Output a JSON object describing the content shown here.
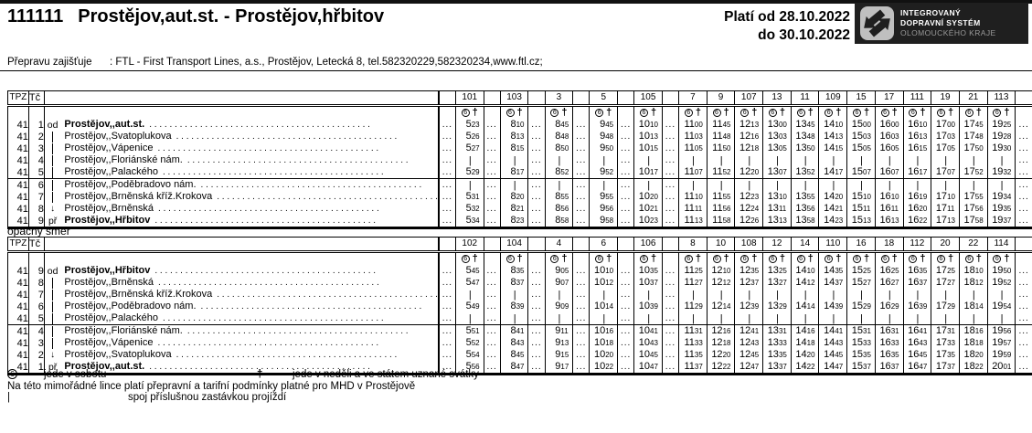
{
  "header": {
    "route_number": "111111",
    "title": "Prostějov,aut.st. - Prostějov,hřbitov",
    "valid_from": "Platí od 28.10.2022",
    "valid_to": "do 30.10.2022"
  },
  "logo": {
    "line1": "INTEGROVANÝ",
    "line2": "DOPRAVNÍ SYSTÉM",
    "line3": "OLOMOUCKÉHO KRAJE"
  },
  "operator": {
    "label": "Přepravu zajišťuje",
    "value": ": FTL - First Transport Lines, a.s., Prostějov, Letecká 8, tel.582320229,582320234,www.ftl.cz;"
  },
  "table_headers": {
    "tpz": "TPZ",
    "tc": "Tč"
  },
  "symbols": {
    "saturday_circle": "6",
    "dagger": "†",
    "pass": "|",
    "dots": "...",
    "arrow": "↓"
  },
  "tables": [
    {
      "label": "",
      "separator_after": 5,
      "stops": [
        {
          "tpz": "41",
          "tc": "1",
          "dir": "od",
          "name": "Prostějov,,aut.st.",
          "bold": true
        },
        {
          "tpz": "41",
          "tc": "2",
          "dir": "|",
          "name": "Prostějov,,Svatoplukova",
          "bold": false
        },
        {
          "tpz": "41",
          "tc": "3",
          "dir": "|",
          "name": "Prostějov,,Vápenice",
          "bold": false
        },
        {
          "tpz": "41",
          "tc": "4",
          "dir": "|",
          "name": "Prostějov,,Floriánské nám.",
          "bold": false
        },
        {
          "tpz": "41",
          "tc": "5",
          "dir": "|",
          "name": "Prostějov,,Palackého",
          "bold": false
        },
        {
          "tpz": "41",
          "tc": "6",
          "dir": "|",
          "name": "Prostějov,,Poděbradovo nám.",
          "bold": false
        },
        {
          "tpz": "41",
          "tc": "7",
          "dir": "|",
          "name": "Prostějov,,Brněnská kříž.Krokova",
          "bold": false
        },
        {
          "tpz": "41",
          "tc": "8",
          "dir": "arrow",
          "name": "Prostějov,,Brněnská",
          "bold": false
        },
        {
          "tpz": "41",
          "tc": "9",
          "dir": "př",
          "name": "Prostějov,,Hřbitov",
          "bold": true
        }
      ],
      "trips": [
        {
          "n": "101",
          "d": true,
          "times": [
            "5 23",
            "5 26",
            "5 27",
            "|",
            "5 29",
            "|",
            "5 31",
            "5 32",
            "5 34"
          ]
        },
        {
          "n": "103",
          "d": true,
          "times": [
            "8 10",
            "8 13",
            "8 15",
            "|",
            "8 17",
            "|",
            "8 20",
            "8 21",
            "8 23"
          ]
        },
        {
          "n": "3",
          "d": true,
          "times": [
            "8 45",
            "8 48",
            "8 50",
            "|",
            "8 52",
            "|",
            "8 55",
            "8 56",
            "8 58"
          ]
        },
        {
          "n": "5",
          "d": true,
          "times": [
            "9 45",
            "9 48",
            "9 50",
            "|",
            "9 52",
            "|",
            "9 55",
            "9 56",
            "9 58"
          ]
        },
        {
          "n": "105",
          "d": true,
          "times": [
            "10 10",
            "10 13",
            "10 15",
            "|",
            "10 17",
            "|",
            "10 20",
            "10 21",
            "10 23"
          ]
        },
        {
          "n": "7",
          "d": true,
          "times": [
            "11 00",
            "11 03",
            "11 05",
            "|",
            "11 07",
            "|",
            "11 10",
            "11 11",
            "11 13"
          ]
        },
        {
          "n": "9",
          "d": false,
          "times": [
            "11 45",
            "11 48",
            "11 50",
            "|",
            "11 52",
            "|",
            "11 55",
            "11 56",
            "11 58"
          ]
        },
        {
          "n": "107",
          "d": false,
          "times": [
            "12 13",
            "12 16",
            "12 18",
            "|",
            "12 20",
            "|",
            "12 23",
            "12 24",
            "12 26"
          ]
        },
        {
          "n": "13",
          "d": false,
          "times": [
            "13 00",
            "13 03",
            "13 05",
            "|",
            "13 07",
            "|",
            "13 10",
            "13 11",
            "13 13"
          ]
        },
        {
          "n": "11",
          "d": false,
          "times": [
            "13 45",
            "13 48",
            "13 50",
            "|",
            "13 52",
            "|",
            "13 55",
            "13 56",
            "13 58"
          ]
        },
        {
          "n": "109",
          "d": false,
          "times": [
            "14 10",
            "14 13",
            "14 15",
            "|",
            "14 17",
            "|",
            "14 20",
            "14 21",
            "14 23"
          ]
        },
        {
          "n": "15",
          "d": false,
          "times": [
            "15 00",
            "15 03",
            "15 05",
            "|",
            "15 07",
            "|",
            "15 10",
            "15 11",
            "15 13"
          ]
        },
        {
          "n": "17",
          "d": false,
          "times": [
            "16 00",
            "16 03",
            "16 05",
            "|",
            "16 07",
            "|",
            "16 10",
            "16 11",
            "16 13"
          ]
        },
        {
          "n": "111",
          "d": false,
          "times": [
            "16 10",
            "16 13",
            "16 15",
            "|",
            "16 17",
            "|",
            "16 19",
            "16 20",
            "16 22"
          ]
        },
        {
          "n": "19",
          "d": false,
          "times": [
            "17 00",
            "17 03",
            "17 05",
            "|",
            "17 07",
            "|",
            "17 10",
            "17 11",
            "17 13"
          ]
        },
        {
          "n": "21",
          "d": false,
          "times": [
            "17 45",
            "17 48",
            "17 50",
            "|",
            "17 52",
            "|",
            "17 55",
            "17 56",
            "17 58"
          ]
        },
        {
          "n": "113",
          "d": false,
          "times": [
            "19 25",
            "19 28",
            "19 30",
            "|",
            "19 32",
            "|",
            "19 34",
            "19 35",
            "19 37"
          ]
        }
      ]
    },
    {
      "label": "opačný směr",
      "separator_after": 5,
      "stops": [
        {
          "tpz": "41",
          "tc": "9",
          "dir": "od",
          "name": "Prostějov,,Hřbitov",
          "bold": true
        },
        {
          "tpz": "41",
          "tc": "8",
          "dir": "|",
          "name": "Prostějov,,Brněnská",
          "bold": false
        },
        {
          "tpz": "41",
          "tc": "7",
          "dir": "|",
          "name": "Prostějov,,Brněnská kříž.Krokova",
          "bold": false
        },
        {
          "tpz": "41",
          "tc": "6",
          "dir": "|",
          "name": "Prostějov,,Poděbradovo nám.",
          "bold": false
        },
        {
          "tpz": "41",
          "tc": "5",
          "dir": "|",
          "name": "Prostějov,,Palackého",
          "bold": false
        },
        {
          "tpz": "41",
          "tc": "4",
          "dir": "|",
          "name": "Prostějov,,Floriánské nám.",
          "bold": false
        },
        {
          "tpz": "41",
          "tc": "3",
          "dir": "|",
          "name": "Prostějov,,Vápenice",
          "bold": false
        },
        {
          "tpz": "41",
          "tc": "2",
          "dir": "arrow",
          "name": "Prostějov,,Svatoplukova",
          "bold": false
        },
        {
          "tpz": "41",
          "tc": "1",
          "dir": "př",
          "name": "Prostějov,,aut.st.",
          "bold": true
        }
      ],
      "trips": [
        {
          "n": "102",
          "d": true,
          "times": [
            "5 45",
            "5 47",
            "|",
            "5 49",
            "|",
            "5 51",
            "5 52",
            "5 54",
            "5 56"
          ]
        },
        {
          "n": "104",
          "d": true,
          "times": [
            "8 35",
            "8 37",
            "|",
            "8 39",
            "|",
            "8 41",
            "8 43",
            "8 45",
            "8 47"
          ]
        },
        {
          "n": "4",
          "d": true,
          "times": [
            "9 05",
            "9 07",
            "|",
            "9 09",
            "|",
            "9 11",
            "9 13",
            "9 15",
            "9 17"
          ]
        },
        {
          "n": "6",
          "d": true,
          "times": [
            "10 10",
            "10 12",
            "|",
            "10 14",
            "|",
            "10 16",
            "10 18",
            "10 20",
            "10 22"
          ]
        },
        {
          "n": "106",
          "d": true,
          "times": [
            "10 35",
            "10 37",
            "|",
            "10 39",
            "|",
            "10 41",
            "10 43",
            "10 45",
            "10 47"
          ]
        },
        {
          "n": "8",
          "d": true,
          "times": [
            "11 25",
            "11 27",
            "|",
            "11 29",
            "|",
            "11 31",
            "11 33",
            "11 35",
            "11 37"
          ]
        },
        {
          "n": "10",
          "d": false,
          "times": [
            "12 10",
            "12 12",
            "|",
            "12 14",
            "|",
            "12 16",
            "12 18",
            "12 20",
            "12 22"
          ]
        },
        {
          "n": "108",
          "d": false,
          "times": [
            "12 35",
            "12 37",
            "|",
            "12 39",
            "|",
            "12 41",
            "12 43",
            "12 45",
            "12 47"
          ]
        },
        {
          "n": "12",
          "d": false,
          "times": [
            "13 25",
            "13 27",
            "|",
            "13 29",
            "|",
            "13 31",
            "13 33",
            "13 35",
            "13 37"
          ]
        },
        {
          "n": "14",
          "d": false,
          "times": [
            "14 10",
            "14 12",
            "|",
            "14 14",
            "|",
            "14 16",
            "14 18",
            "14 20",
            "14 22"
          ]
        },
        {
          "n": "110",
          "d": false,
          "times": [
            "14 35",
            "14 37",
            "|",
            "14 39",
            "|",
            "14 41",
            "14 43",
            "14 45",
            "14 47"
          ]
        },
        {
          "n": "16",
          "d": false,
          "times": [
            "15 25",
            "15 27",
            "|",
            "15 29",
            "|",
            "15 31",
            "15 33",
            "15 35",
            "15 37"
          ]
        },
        {
          "n": "18",
          "d": false,
          "times": [
            "16 25",
            "16 27",
            "|",
            "16 29",
            "|",
            "16 31",
            "16 33",
            "16 35",
            "16 37"
          ]
        },
        {
          "n": "112",
          "d": false,
          "times": [
            "16 35",
            "16 37",
            "|",
            "16 39",
            "|",
            "16 41",
            "16 43",
            "16 45",
            "16 47"
          ]
        },
        {
          "n": "20",
          "d": false,
          "times": [
            "17 25",
            "17 27",
            "|",
            "17 29",
            "|",
            "17 31",
            "17 33",
            "17 35",
            "17 37"
          ]
        },
        {
          "n": "22",
          "d": false,
          "times": [
            "18 10",
            "18 12",
            "|",
            "18 14",
            "|",
            "18 16",
            "18 18",
            "18 20",
            "18 22"
          ]
        },
        {
          "n": "114",
          "d": false,
          "times": [
            "19 50",
            "19 52",
            "|",
            "19 54",
            "|",
            "19 56",
            "19 57",
            "19 59",
            "20 01"
          ]
        }
      ]
    }
  ],
  "legend": {
    "saturday_text": "jede v sobotu",
    "sunday_text": "jede v neděli a ve státem uznané svátky",
    "note": "Na této mimořádné lince platí přepravní a tarifní podmínky platné pro MHD v Prostějově",
    "pass_text": "spoj příslušnou zastávkou projíždí"
  }
}
